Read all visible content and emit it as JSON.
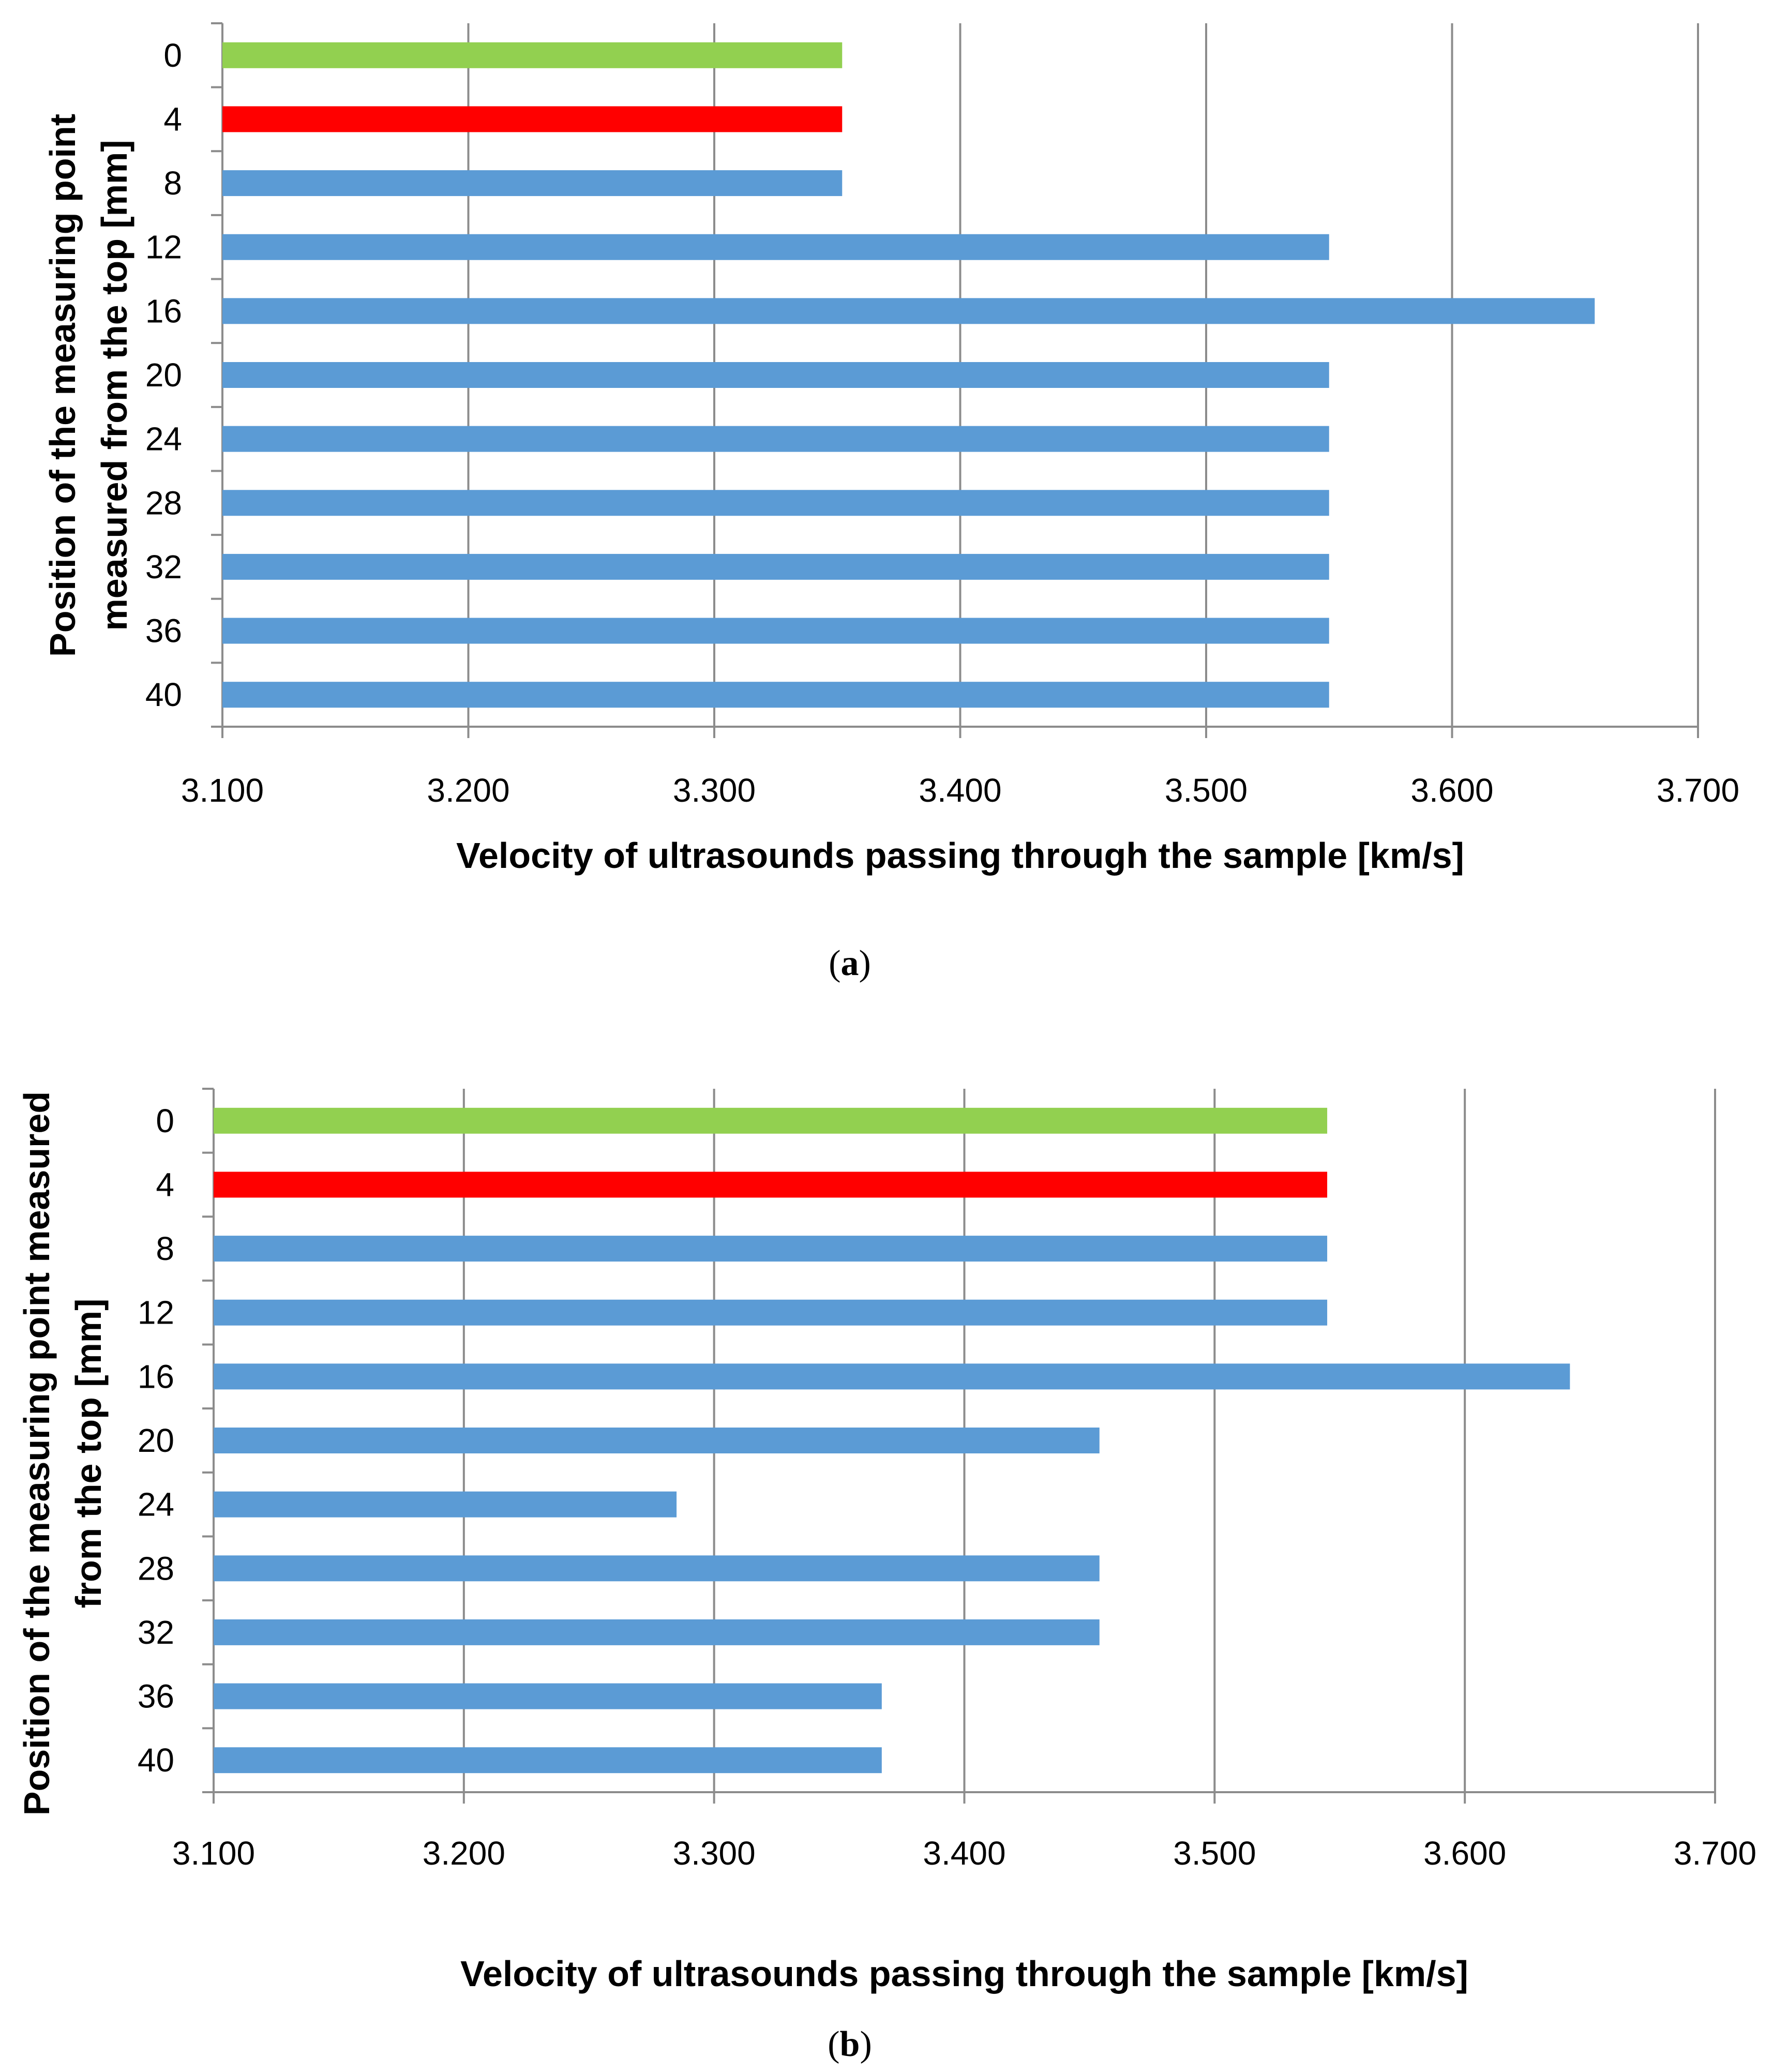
{
  "chart_data": [
    {
      "type": "bar",
      "orientation": "horizontal",
      "caption_label": "a",
      "categories": [
        "0",
        "4",
        "8",
        "12",
        "16",
        "20",
        "24",
        "28",
        "32",
        "36",
        "40"
      ],
      "values": [
        3.352,
        3.352,
        3.352,
        3.55,
        3.658,
        3.55,
        3.55,
        3.55,
        3.55,
        3.55,
        3.55
      ],
      "bar_colors": [
        "#92d050",
        "#ff0000",
        "#5b9bd5",
        "#5b9bd5",
        "#5b9bd5",
        "#5b9bd5",
        "#5b9bd5",
        "#5b9bd5",
        "#5b9bd5",
        "#5b9bd5",
        "#5b9bd5"
      ],
      "xlim": [
        3.1,
        3.7
      ],
      "xticks": [
        "3.100",
        "3.200",
        "3.300",
        "3.400",
        "3.500",
        "3.600",
        "3.700"
      ],
      "xlabel": "Velocity of ultrasounds passing through the sample [km/s]",
      "ylabel_lines": [
        "Position of the measuring point",
        "measured from the top [mm]"
      ],
      "grid": true
    },
    {
      "type": "bar",
      "orientation": "horizontal",
      "caption_label": "b",
      "categories": [
        "0",
        "4",
        "8",
        "12",
        "16",
        "20",
        "24",
        "28",
        "32",
        "36",
        "40"
      ],
      "values": [
        3.545,
        3.545,
        3.545,
        3.545,
        3.642,
        3.454,
        3.285,
        3.454,
        3.454,
        3.367,
        3.367
      ],
      "bar_colors": [
        "#92d050",
        "#ff0000",
        "#5b9bd5",
        "#5b9bd5",
        "#5b9bd5",
        "#5b9bd5",
        "#5b9bd5",
        "#5b9bd5",
        "#5b9bd5",
        "#5b9bd5",
        "#5b9bd5"
      ],
      "xlim": [
        3.1,
        3.7
      ],
      "xticks": [
        "3.100",
        "3.200",
        "3.300",
        "3.400",
        "3.500",
        "3.600",
        "3.700"
      ],
      "xlabel": "Velocity of ultrasounds passing through the sample [km/s]",
      "ylabel_lines": [
        "Position of the measuring point measured",
        "from the top [mm]"
      ],
      "grid": true
    }
  ]
}
